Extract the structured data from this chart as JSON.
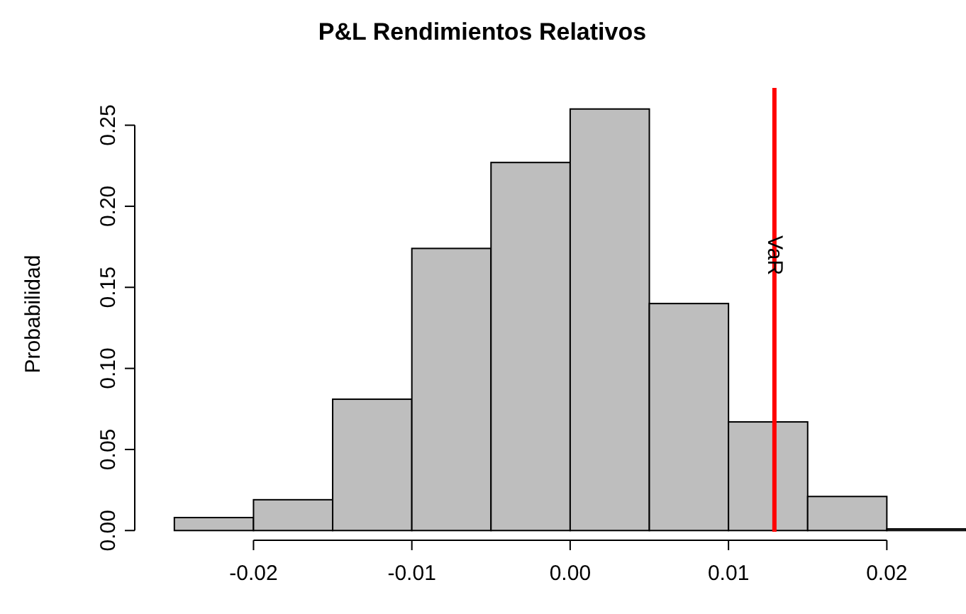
{
  "chart_data": {
    "type": "histogram",
    "title": "P&L Rendimientos Relativos",
    "ylabel": "Probabilidad",
    "bins": [
      -0.025,
      -0.02,
      -0.015,
      -0.01,
      -0.005,
      0,
      0.005,
      0.01,
      0.015,
      0.02,
      0.025
    ],
    "values": [
      0.008,
      0.019,
      0.081,
      0.174,
      0.227,
      0.26,
      0.14,
      0.067,
      0.021,
      0.001
    ],
    "color": "#bebebe",
    "xlim": [
      -0.0275,
      0.025
    ],
    "ylim": [
      -0.006,
      0.273
    ],
    "xticks": [
      {
        "value": -0.02,
        "label": "-0.02"
      },
      {
        "value": -0.01,
        "label": "-0.01"
      },
      {
        "value": 0,
        "label": "0.00"
      },
      {
        "value": 0.01,
        "label": "0.01"
      },
      {
        "value": 0.02,
        "label": "0.02"
      }
    ],
    "yticks": [
      {
        "value": 0,
        "label": "0.00"
      },
      {
        "value": 0.05,
        "label": "0.05"
      },
      {
        "value": 0.1,
        "label": "0.10"
      },
      {
        "value": 0.15,
        "label": "0.15"
      },
      {
        "value": 0.2,
        "label": "0.20"
      },
      {
        "value": 0.25,
        "label": "0.25"
      }
    ],
    "ref_lines": [
      {
        "axis": "x",
        "value": 0.0129,
        "label": "VaR",
        "color": "#ff0000"
      }
    ]
  }
}
